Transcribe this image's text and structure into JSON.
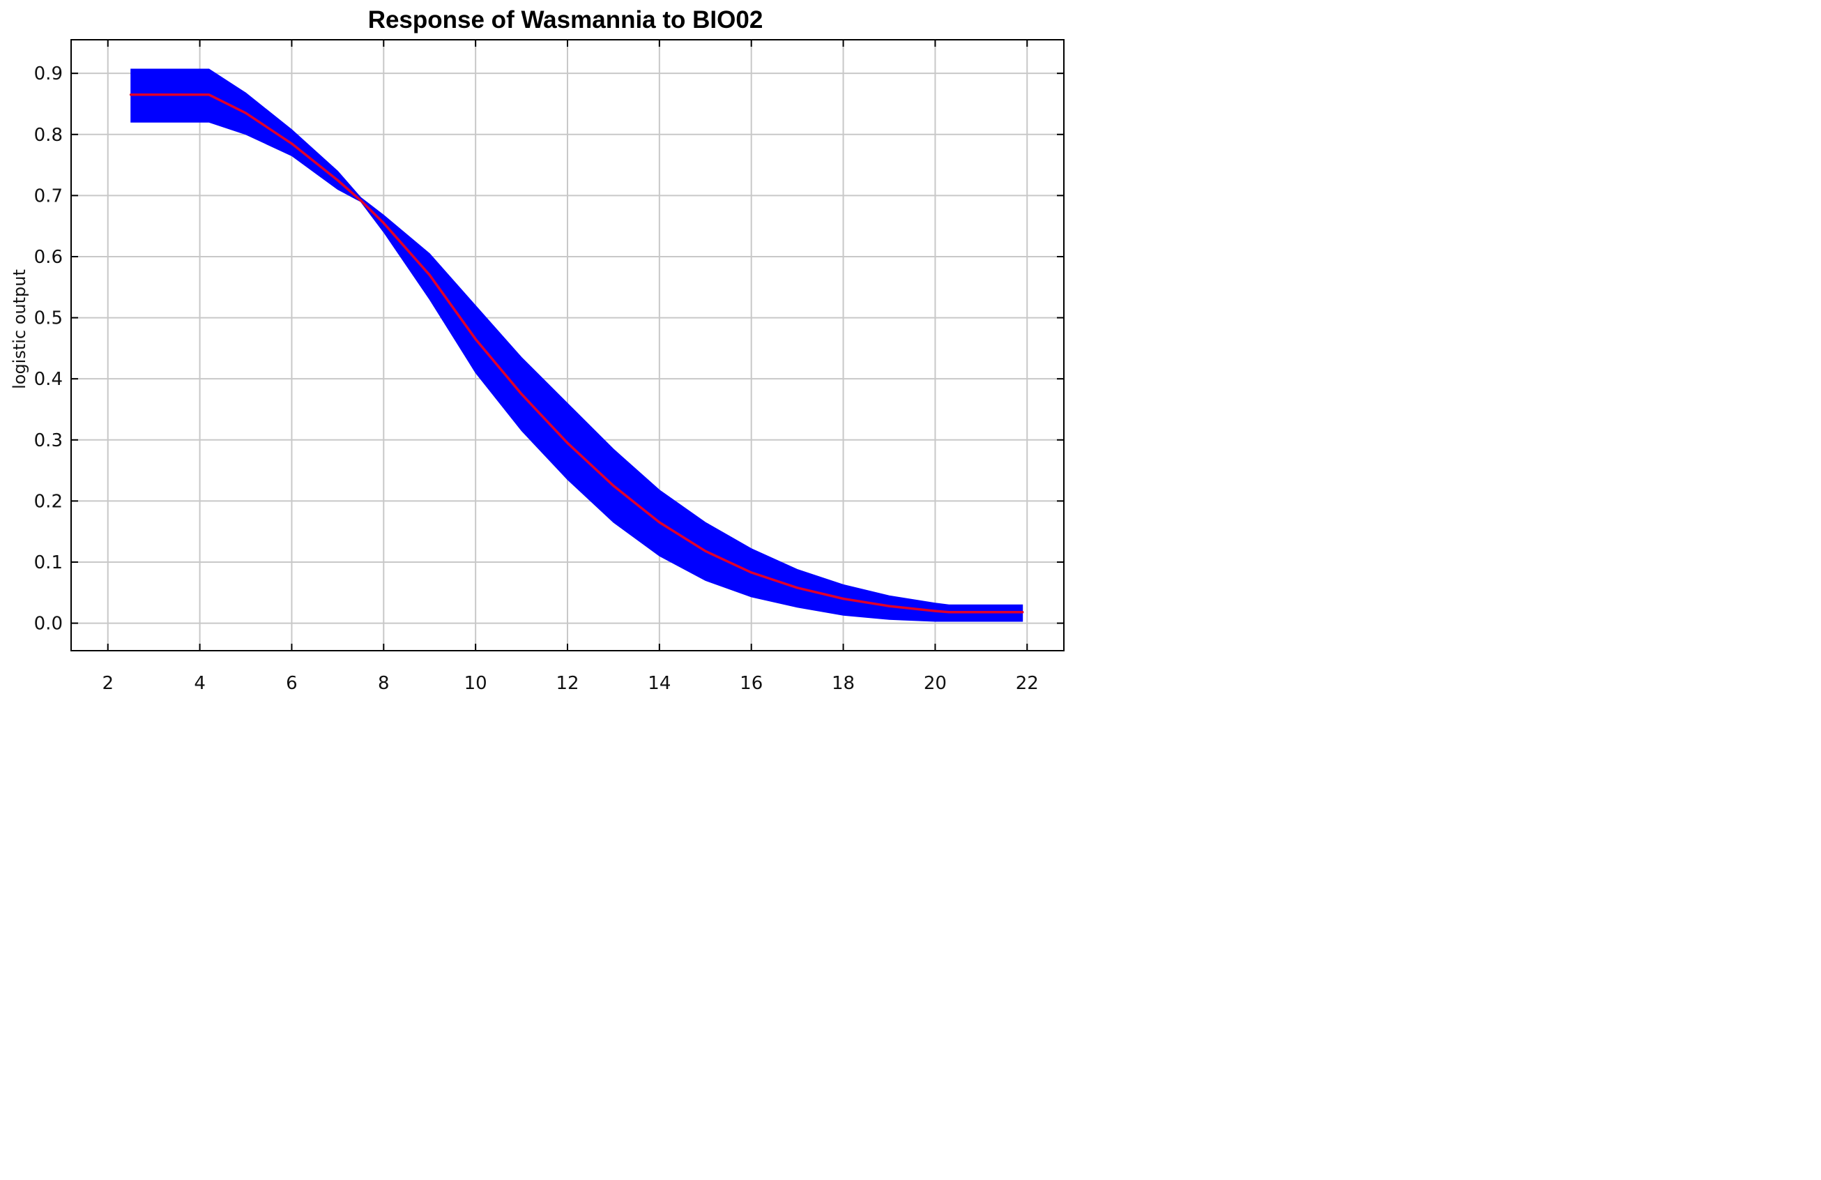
{
  "chart_data": {
    "type": "line",
    "title": "Response of Wasmannia to BIO02",
    "xlabel": "",
    "ylabel": "logistic output",
    "xlim": [
      1.2,
      22.8
    ],
    "ylim": [
      -0.045,
      0.955
    ],
    "x_ticks": [
      2,
      4,
      6,
      8,
      10,
      12,
      14,
      16,
      18,
      20,
      22
    ],
    "x_tick_labels": [
      "2",
      "4",
      "6",
      "8",
      "10",
      "12",
      "14",
      "16",
      "18",
      "20",
      "22"
    ],
    "y_ticks": [
      0.0,
      0.1,
      0.2,
      0.3,
      0.4,
      0.5,
      0.6,
      0.7,
      0.8,
      0.9
    ],
    "y_tick_labels": [
      "0.0",
      "0.1",
      "0.2",
      "0.3",
      "0.4",
      "0.5",
      "0.6",
      "0.7",
      "0.8",
      "0.9"
    ],
    "grid": true,
    "colors": {
      "mean": "#e0002a",
      "band": "#0000ff",
      "grid": "#c8c8c8",
      "frame": "#000000"
    },
    "series": [
      {
        "x": [
          2.5,
          4.2,
          5,
          6,
          7,
          7.5,
          8,
          9,
          10,
          11,
          12,
          13,
          14,
          15,
          16,
          17,
          18,
          19,
          20,
          20.3,
          21.9
        ],
        "mean": [
          0.865,
          0.865,
          0.835,
          0.785,
          0.725,
          0.692,
          0.655,
          0.57,
          0.465,
          0.375,
          0.295,
          0.225,
          0.165,
          0.118,
          0.083,
          0.058,
          0.04,
          0.028,
          0.02,
          0.018,
          0.018
        ],
        "upper": [
          0.907,
          0.907,
          0.868,
          0.808,
          0.74,
          0.697,
          0.668,
          0.605,
          0.52,
          0.435,
          0.36,
          0.285,
          0.218,
          0.165,
          0.122,
          0.088,
          0.063,
          0.045,
          0.033,
          0.03,
          0.03
        ],
        "lower": [
          0.82,
          0.82,
          0.8,
          0.765,
          0.71,
          0.69,
          0.64,
          0.53,
          0.41,
          0.315,
          0.235,
          0.165,
          0.11,
          0.07,
          0.043,
          0.026,
          0.013,
          0.006,
          0.003,
          0.003,
          0.003
        ]
      }
    ]
  }
}
